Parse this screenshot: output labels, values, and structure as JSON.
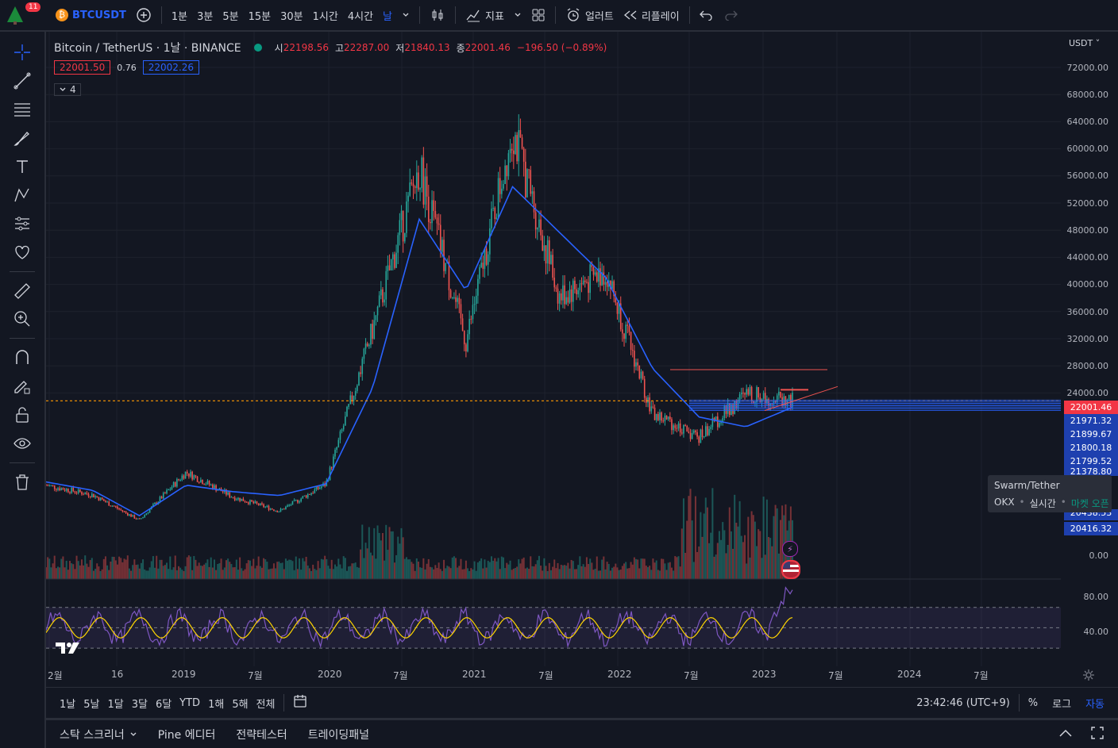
{
  "topbar": {
    "notification_count": "11",
    "symbol": "BTCUSDT",
    "intervals": [
      "1분",
      "3분",
      "5분",
      "15분",
      "30분",
      "1시간",
      "4시간",
      "날"
    ],
    "indicators_label": "지표",
    "alert_label": "얼러트",
    "replay_label": "리플레이"
  },
  "legend": {
    "title": "Bitcoin / TetherUS · 1날 · BINANCE",
    "open_label": "시",
    "open": "22198.56",
    "high_label": "고",
    "high": "22287.00",
    "low_label": "저",
    "low": "21840.13",
    "close_label": "종",
    "close": "22001.46",
    "change": "−196.50 (−0.89%)",
    "sell_price": "22001.50",
    "spread": "0.76",
    "buy_price": "22002.26",
    "indicators_count": "4"
  },
  "price_axis": {
    "currency": "USDT",
    "labels": [
      "72000.00",
      "68000.00",
      "64000.00",
      "60000.00",
      "56000.00",
      "52000.00",
      "48000.00",
      "44000.00",
      "40000.00",
      "36000.00",
      "32000.00",
      "28000.00",
      "24000.00"
    ],
    "current_price": "22001.46",
    "level_tags": [
      "21971.32",
      "21899.67",
      "21800.18",
      "21799.52",
      "21378.80",
      "20438.53",
      "20416.32"
    ],
    "volume_zero": "0.00",
    "rsi_labels": [
      "80.00",
      "40.00"
    ]
  },
  "time_axis": {
    "labels": [
      "2월",
      "16",
      "2019",
      "7월",
      "2020",
      "7월",
      "2021",
      "7월",
      "2022",
      "7월",
      "2023",
      "7월",
      "2024",
      "7월"
    ]
  },
  "tooltip": {
    "title": "Swarm/Tether",
    "exchange": "OKX",
    "mode": "실시간",
    "status": "마켓 오픈"
  },
  "bottombar": {
    "ranges": [
      "1날",
      "5날",
      "1달",
      "3달",
      "6달",
      "YTD",
      "1해",
      "5해",
      "전체"
    ],
    "clock": "23:42:46 (UTC+9)",
    "percent": "%",
    "log": "로그",
    "auto": "자동"
  },
  "panel": {
    "tabs": [
      "스탁 스크리너",
      "Pine 에디터",
      "전략테스터",
      "트레이딩패널"
    ]
  },
  "colors": {
    "up": "#26a69a",
    "down": "#ef5350",
    "ma": "#2962ff",
    "rsi": "#7e57c2",
    "rsi_ma": "#ffd600",
    "accent": "#2962ff",
    "current_price": "#f23645"
  },
  "chart_data": {
    "type": "candlestick",
    "interval": "1D",
    "x": [
      "2018-02",
      "2018-07",
      "2019-01",
      "2019-07",
      "2020-01",
      "2020-03",
      "2020-07",
      "2021-01",
      "2021-04",
      "2021-07",
      "2021-11",
      "2022-01",
      "2022-04",
      "2022-07",
      "2022-11",
      "2023-01",
      "2023-03"
    ],
    "close": [
      9000,
      7500,
      3600,
      11000,
      7200,
      5000,
      9200,
      33000,
      58000,
      31000,
      64000,
      38000,
      42000,
      20000,
      16500,
      23000,
      22001
    ],
    "ma_close": [
      9500,
      8200,
      4300,
      9000,
      8000,
      7400,
      9200,
      24000,
      50000,
      39000,
      55000,
      48000,
      41000,
      27000,
      19500,
      18000,
      21000
    ],
    "rsi_range": [
      20,
      90
    ],
    "rsi_bands": [
      70,
      50,
      30
    ],
    "price_range": [
      0,
      74000
    ]
  }
}
